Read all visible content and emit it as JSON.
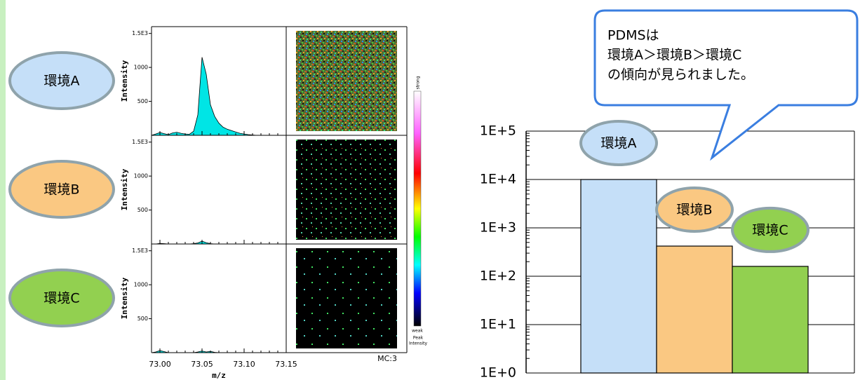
{
  "chart_data": [
    {
      "type": "area",
      "y_label": "Intensity",
      "x_label": "m/z",
      "x": [
        72.99,
        72.995,
        73.0,
        73.005,
        73.01,
        73.015,
        73.02,
        73.025,
        73.03,
        73.035,
        73.04,
        73.045,
        73.05,
        73.055,
        73.06,
        73.065,
        73.07,
        73.075,
        73.08,
        73.085,
        73.09,
        73.095,
        73.1,
        73.105,
        73.11,
        73.115,
        73.12,
        73.125,
        73.13,
        73.135,
        73.14,
        73.145,
        73.15
      ],
      "xlim": [
        72.99,
        73.15
      ],
      "xticks": [
        {
          "value": 73.0,
          "label": "73.00"
        },
        73.05,
        {
          "value": 73.1,
          "label": "73.10"
        },
        73.15
      ],
      "ylim": [
        0,
        1600
      ],
      "yticks": [
        {
          "value": 1500,
          "label": "1.5E3"
        },
        1000,
        500
      ],
      "series": [
        {
          "name": "環境A",
          "color": "#00e5e5",
          "label_color": "#c5dff8",
          "values": [
            0,
            20,
            40,
            25,
            10,
            35,
            45,
            30,
            20,
            15,
            60,
            300,
            1150,
            900,
            450,
            280,
            180,
            120,
            90,
            70,
            50,
            30,
            20,
            10,
            5,
            0,
            0,
            0,
            0,
            0,
            0,
            0,
            0
          ]
        },
        {
          "name": "環境B",
          "color": "#00e5e5",
          "label_color": "#fac882",
          "values": [
            0,
            0,
            8,
            5,
            0,
            0,
            0,
            0,
            0,
            0,
            5,
            15,
            40,
            20,
            5,
            0,
            0,
            0,
            0,
            0,
            0,
            0,
            0,
            0,
            0,
            0,
            0,
            0,
            0,
            0,
            0,
            0,
            0
          ]
        },
        {
          "name": "環境C",
          "color": "#00e5e5",
          "label_color": "#92d050",
          "values": [
            0,
            10,
            30,
            15,
            0,
            0,
            0,
            0,
            0,
            0,
            0,
            10,
            25,
            10,
            20,
            5,
            0,
            0,
            0,
            0,
            0,
            0,
            0,
            0,
            0,
            0,
            0,
            0,
            0,
            0,
            0,
            0,
            0
          ]
        }
      ],
      "colorbar": {
        "top": "strong",
        "bottom": "weak",
        "title": [
          "Peak",
          "Intensity"
        ]
      },
      "image_label": "MC:3"
    },
    {
      "type": "bar",
      "log_scale": true,
      "grid": true,
      "categories": [
        "環境A",
        "環境B",
        "環境C"
      ],
      "values": [
        10000,
        420,
        160
      ],
      "colors": [
        "#c5dff8",
        "#fac882",
        "#92d050"
      ],
      "ylim": [
        1,
        100000
      ],
      "yticks": [
        {
          "value": 1,
          "label": "1E+0"
        },
        {
          "value": 10,
          "label": "1E+1"
        },
        {
          "value": 100,
          "label": "1E+2"
        },
        {
          "value": 1000,
          "label": "1E+3"
        },
        {
          "value": 10000,
          "label": "1E+4"
        },
        {
          "value": 100000,
          "label": "1E+5"
        }
      ]
    }
  ],
  "callout": [
    "PDMSは",
    "環境A＞環境B＞環境C",
    "の傾向が見られました。"
  ]
}
